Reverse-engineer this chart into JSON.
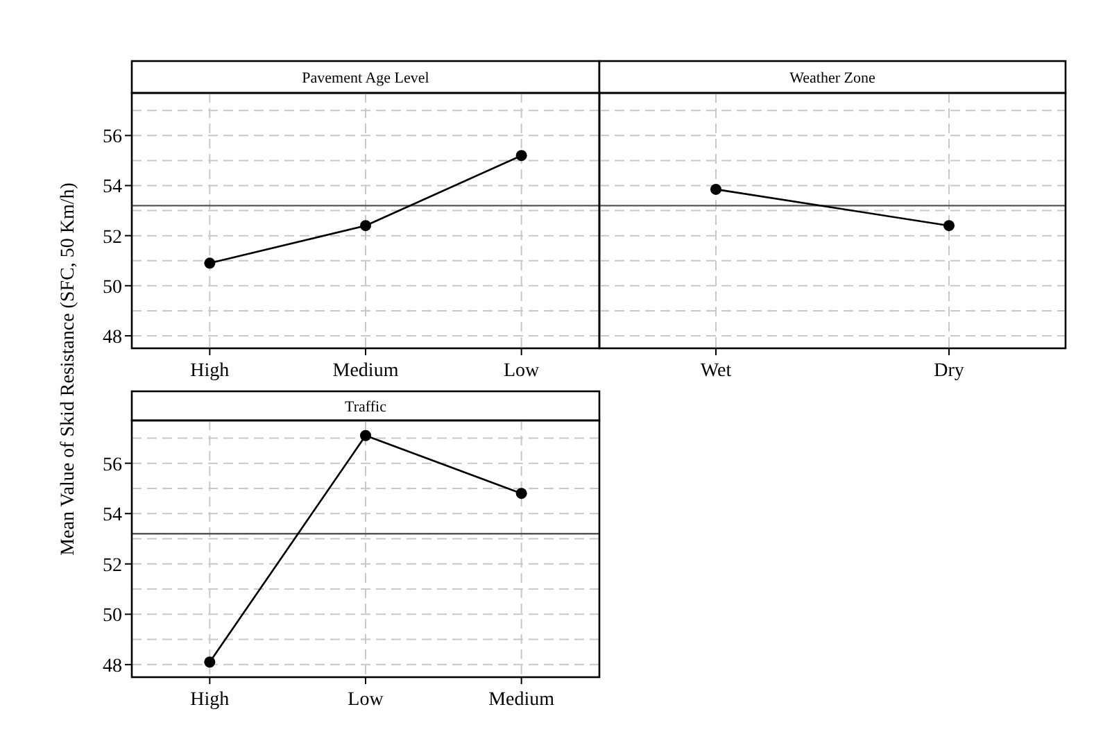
{
  "chart_data": [
    {
      "type": "line",
      "title": "Pavement Age Level",
      "ylabel": "Mean Value of Skid Resistance (SFC, 50 Km/h)",
      "categories": [
        "High",
        "Medium",
        "Low"
      ],
      "series": [
        {
          "color": "#000000",
          "values": [
            50.9,
            52.4,
            55.2
          ]
        }
      ],
      "ylim": [
        47.5,
        57.7
      ],
      "yticks": [
        48,
        {
          "value": 49,
          "label": null
        },
        50,
        {
          "value": 51,
          "label": null
        },
        52,
        {
          "value": 53,
          "label": null
        },
        54,
        {
          "value": 55,
          "label": null
        },
        56,
        {
          "value": 57,
          "label": null
        }
      ],
      "ref_lines": [
        {
          "axis": "y",
          "value": 53.2,
          "color": "#555555"
        }
      ],
      "grid": true,
      "marker": "circle",
      "line_style": "solid"
    },
    {
      "type": "line",
      "title": "Weather Zone",
      "categories": [
        "Wet",
        "Dry"
      ],
      "series": [
        {
          "color": "#000000",
          "values": [
            53.85,
            52.4
          ]
        }
      ],
      "ylim": [
        47.5,
        57.7
      ],
      "yticks": [
        48,
        {
          "value": 49,
          "label": null
        },
        50,
        {
          "value": 51,
          "label": null
        },
        52,
        {
          "value": 53,
          "label": null
        },
        54,
        {
          "value": 55,
          "label": null
        },
        56,
        {
          "value": 57,
          "label": null
        }
      ],
      "ref_lines": [
        {
          "axis": "y",
          "value": 53.2,
          "color": "#555555"
        }
      ],
      "grid": true,
      "marker": "circle",
      "line_style": "solid",
      "tick_labels": "x"
    },
    {
      "type": "line",
      "title": "Traffic",
      "categories": [
        "High",
        "Low",
        "Medium"
      ],
      "series": [
        {
          "color": "#000000",
          "values": [
            48.1,
            57.1,
            54.8
          ]
        }
      ],
      "ylim": [
        47.5,
        57.7
      ],
      "yticks": [
        48,
        {
          "value": 49,
          "label": null
        },
        50,
        {
          "value": 51,
          "label": null
        },
        52,
        {
          "value": 53,
          "label": null
        },
        54,
        {
          "value": 55,
          "label": null
        },
        56,
        {
          "value": 57,
          "label": null
        }
      ],
      "ref_lines": [
        {
          "axis": "y",
          "value": 53.2,
          "color": "#555555"
        }
      ],
      "grid": true,
      "marker": "circle",
      "line_style": "solid"
    }
  ]
}
